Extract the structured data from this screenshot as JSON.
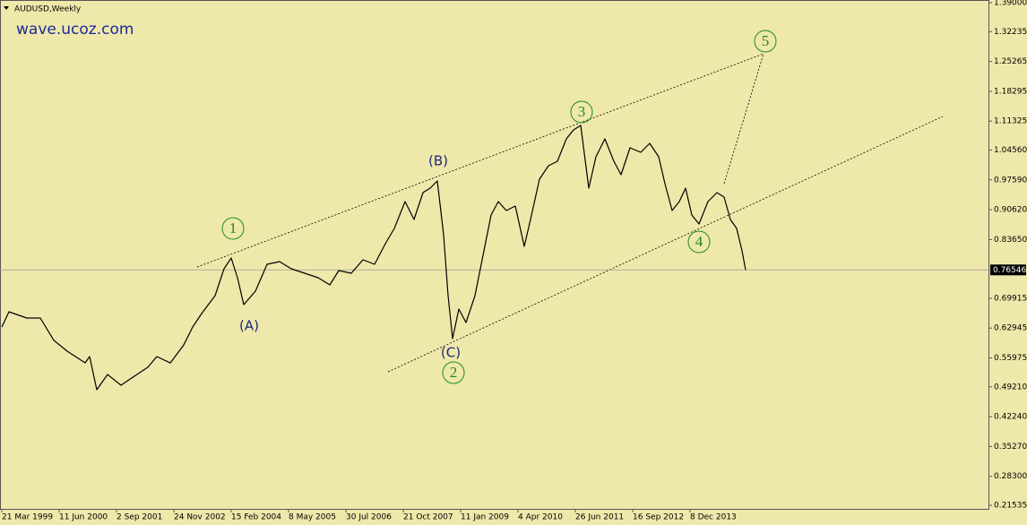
{
  "chart_data": {
    "type": "line",
    "title": "AUDUSD,Weekly",
    "watermark": "wave.ucoz.com",
    "color": "#000000",
    "background": "#efe8ab",
    "x": [
      "21 Mar 1999",
      "16 May 1999",
      "3 Oct 1999",
      "16 Jan 2000",
      "30 Apr 2000",
      "13 Aug 2000",
      "31 Dec 2000",
      "4 Feb 2001",
      "1 Apr 2001",
      "24 Jun 2001",
      "7 Oct 2001",
      "20 Jan 2002",
      "5 May 2002",
      "14 Jul 2002",
      "27 Oct 2002",
      "9 Feb 2003",
      "20 Apr 2003",
      "29 Jun 2003",
      "12 Oct 2003",
      "21 Dec 2003",
      "15 Feb 2004",
      "4 Apr 2004",
      "23 May 2004",
      "22 Aug 2004",
      "21 Nov 2004",
      "27 Feb 2005",
      "29 May 2005",
      "11 Sep 2005",
      "25 Dec 2005",
      "26 Mar 2006",
      "4 Jun 2006",
      "10 Sep 2006",
      "10 Dec 2006",
      "11 Mar 2007",
      "3 Jun 2007",
      "12 Aug 2007",
      "4 Nov 2007",
      "13 Jan 2008",
      "23 Mar 2008",
      "18 May 2008",
      "13 Jul 2008",
      "31 Aug 2008",
      "5 Oct 2008",
      "9 Nov 2008",
      "28 Dec 2008",
      "22 Feb 2009",
      "3 May 2009",
      "12 Jul 2009",
      "6 Sep 2009",
      "1 Nov 2009",
      "3 Jan 2010",
      "14 Mar 2010",
      "23 May 2010",
      "11 Jul 2010",
      "19 Sep 2010",
      "28 Nov 2010",
      "6 Feb 2011",
      "17 Apr 2011",
      "12 Jun 2011",
      "7 Aug 2011",
      "9 Oct 2011",
      "4 Dec 2011",
      "12 Feb 2012",
      "22 Apr 2012",
      "17 Jun 2012",
      "26 Aug 2012",
      "18 Nov 2012",
      "27 Jan 2013",
      "7 Apr 2013",
      "26 May 2013",
      "21 Jul 2013",
      "15 Sep 2013",
      "3 Nov 2013",
      "22 Dec 2013",
      "16 Feb 2014",
      "27 Apr 2014",
      "6 Jul 2014",
      "31 Aug 2014",
      "19 Oct 2014",
      "7 Dec 2014",
      "18 Jan 2015",
      "15 Feb 2015"
    ],
    "values": [
      0.632,
      0.6676,
      0.653,
      0.653,
      0.601,
      0.5755,
      0.5483,
      0.563,
      0.4855,
      0.521,
      0.496,
      0.517,
      0.538,
      0.563,
      0.548,
      0.59,
      0.632,
      0.6634,
      0.7053,
      0.7681,
      0.7933,
      0.7472,
      0.6844,
      0.7158,
      0.7786,
      0.7849,
      0.7681,
      0.7577,
      0.7472,
      0.7304,
      0.764,
      0.7577,
      0.7891,
      0.7786,
      0.8268,
      0.8624,
      0.9252,
      0.8833,
      0.9461,
      0.9566,
      0.9733,
      0.8477,
      0.7053,
      0.6048,
      0.6739,
      0.6425,
      0.7053,
      0.81,
      0.8938,
      0.9252,
      0.9042,
      0.9147,
      0.8205,
      0.8833,
      0.9775,
      1.0089,
      1.0194,
      1.0717,
      1.0927,
      1.1031,
      0.9566,
      1.0299,
      1.0717,
      1.0194,
      0.988,
      1.0508,
      1.0403,
      1.0613,
      1.0299,
      0.9671,
      0.9042,
      0.9252,
      0.9566,
      0.8938,
      0.8728,
      0.9252,
      0.9461,
      0.9356,
      0.8833,
      0.8624,
      0.81,
      0.7655
    ],
    "current_price": 0.76546,
    "ylim": [
      0.21535,
      1.39
    ],
    "yticks": [
      {
        "value": 1.39,
        "label": "1.39000"
      },
      {
        "value": 1.32235,
        "label": "1.32235"
      },
      {
        "value": 1.25265,
        "label": "1.25265"
      },
      {
        "value": 1.18295,
        "label": "1.18295"
      },
      {
        "value": 1.11325,
        "label": "1.11325"
      },
      {
        "value": 1.0456,
        "label": "1.04560"
      },
      {
        "value": 0.9759,
        "label": "0.97590"
      },
      {
        "value": 0.9062,
        "label": "0.90620"
      },
      {
        "value": 0.8365,
        "label": "0.83650"
      },
      {
        "value": 0.69915,
        "label": "0.69915"
      },
      {
        "value": 0.62945,
        "label": "0.62945"
      },
      {
        "value": 0.55975,
        "label": "0.55975"
      },
      {
        "value": 0.4921,
        "label": "0.49210"
      },
      {
        "value": 0.4224,
        "label": "0.42240"
      },
      {
        "value": 0.3527,
        "label": "0.35270"
      },
      {
        "value": 0.283,
        "label": "0.28300"
      },
      {
        "value": 0.21535,
        "label": "0.21535"
      }
    ],
    "xticks": [
      "21 Mar 1999",
      "11 Jun 2000",
      "2 Sep 2001",
      "24 Nov 2002",
      "15 Feb 2004",
      "8 May 2005",
      "30 Jul 2006",
      "21 Oct 2007",
      "11 Jan 2009",
      "4 Apr 2010",
      "26 Jun 2011",
      "16 Sep 2012",
      "8 Dec 2013"
    ],
    "wave_labels": [
      "1",
      "2",
      "3",
      "4",
      "5"
    ],
    "correction_labels": [
      "(A)",
      "(B)",
      "(C)"
    ]
  }
}
